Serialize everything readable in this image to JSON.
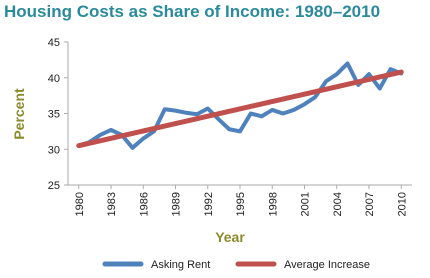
{
  "chart_data": {
    "type": "line",
    "title": "Housing Costs as Share of Income: 1980–2010",
    "x_label": "Year",
    "y_label": "Percent",
    "x": [
      1980,
      1981,
      1982,
      1983,
      1984,
      1985,
      1986,
      1987,
      1988,
      1989,
      1990,
      1991,
      1992,
      1993,
      1994,
      1995,
      1996,
      1997,
      1998,
      1999,
      2000,
      2001,
      2002,
      2003,
      2004,
      2005,
      2006,
      2007,
      2008,
      2009,
      2010
    ],
    "series": [
      {
        "name": "Asking Rent",
        "color": "#4f81bd",
        "values": [
          30.5,
          31.0,
          32.0,
          32.7,
          32.0,
          30.2,
          31.5,
          32.5,
          35.6,
          35.4,
          35.1,
          34.9,
          35.7,
          34.2,
          32.8,
          32.5,
          35.0,
          34.6,
          35.5,
          35.0,
          35.5,
          36.3,
          37.3,
          39.5,
          40.5,
          42.0,
          39.0,
          40.5,
          38.5,
          41.2,
          40.6
        ]
      },
      {
        "name": "Average Increase",
        "color": "#c0504d",
        "x": [
          1980,
          2010
        ],
        "values": [
          30.5,
          40.8
        ]
      }
    ],
    "xlim": [
      1979,
      2011
    ],
    "xticks": [
      1980,
      1983,
      1986,
      1989,
      1992,
      1995,
      1998,
      2001,
      2004,
      2007,
      2010
    ],
    "ylim": [
      25,
      45
    ],
    "yticks": [
      25,
      30,
      35,
      40,
      45
    ],
    "grid": false,
    "legend": "bottom"
  }
}
